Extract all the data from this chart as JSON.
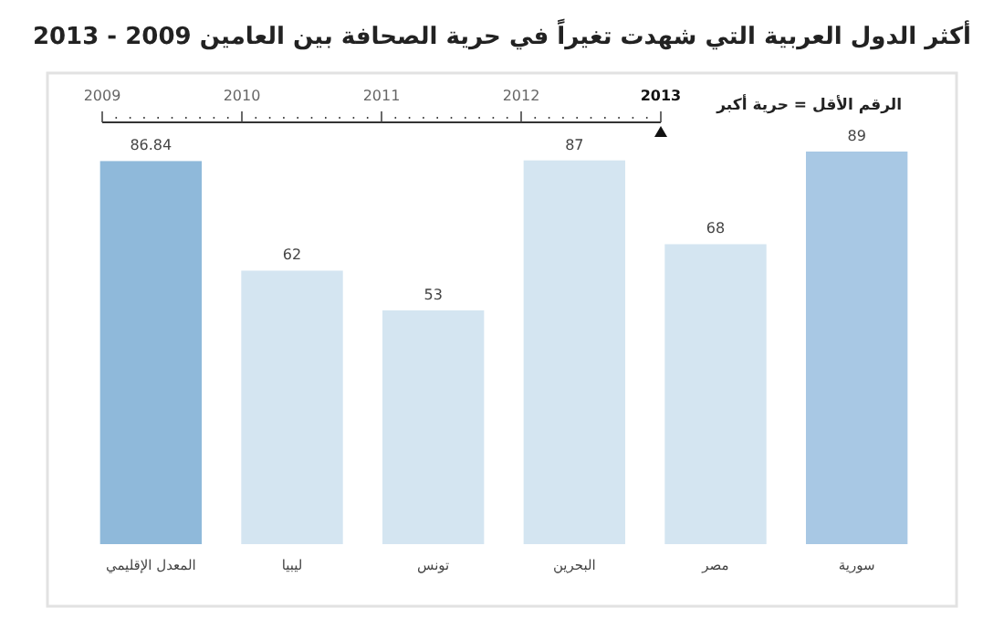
{
  "chart_data": {
    "type": "bar",
    "title": "أكثر الدول العربية التي شهدت تغيراً في حرية الصحافة بين العامين 2009 - 2013",
    "subtitle": "الرقم الأقل = حرية أكبر",
    "categories": [
      "المعدل الإقليمي",
      "ليبيا",
      "تونس",
      "البحرين",
      "مصر",
      "سورية"
    ],
    "values": [
      86.84,
      62,
      53,
      87,
      68,
      89
    ],
    "colors": [
      "#8fb9da",
      "#d4e5f1",
      "#d4e5f1",
      "#d4e5f1",
      "#d4e5f1",
      "#a8c8e4"
    ],
    "data_labels": true,
    "annotations": [
      "2009",
      "2010",
      "2011",
      "2012",
      "2013"
    ]
  }
}
